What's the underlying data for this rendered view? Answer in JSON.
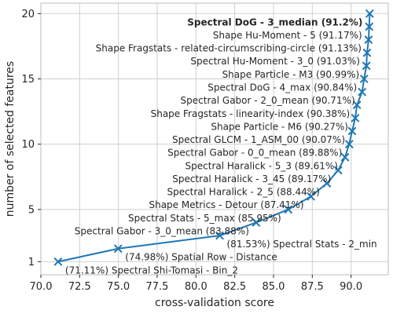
{
  "chart_data": {
    "type": "line",
    "title": "",
    "xlabel": "cross-validation score",
    "ylabel": "number of selected features",
    "xlim": [
      70.0,
      92.4
    ],
    "ylim": [
      0.0,
      20.8
    ],
    "xticks": [
      70.0,
      72.5,
      75.0,
      77.5,
      80.0,
      82.5,
      85.0,
      87.5,
      90.0
    ],
    "xtick_labels": [
      "70.0",
      "72.5",
      "75.0",
      "77.5",
      "80.0",
      "82.5",
      "85.0",
      "87.5",
      "90.0"
    ],
    "yticks": [
      1,
      5,
      10,
      15,
      20
    ],
    "ytick_labels": [
      "1",
      "5",
      "10",
      "15",
      "20"
    ],
    "grid": true,
    "marker": "x",
    "color": "#1f77b4",
    "series": [
      {
        "points": [
          {
            "x": 71.11,
            "y": 1,
            "label": "(71.11%) Spectral Shi-Tomasi - Bin_2",
            "label_side": "right",
            "bold": false
          },
          {
            "x": 74.98,
            "y": 2,
            "label": "(74.98%) Spatial Row - Distance",
            "label_side": "right",
            "bold": false
          },
          {
            "x": 81.53,
            "y": 3,
            "label": "(81.53%) Spectral Stats - 2_min",
            "label_side": "right",
            "bold": false
          },
          {
            "x": 83.88,
            "y": 4,
            "label": "Spectral Gabor - 3_0_mean (83.88%)",
            "label_side": "left",
            "bold": false
          },
          {
            "x": 85.95,
            "y": 5,
            "label": "Spectral Stats - 5_max (85.95%)",
            "label_side": "left",
            "bold": false
          },
          {
            "x": 87.41,
            "y": 6,
            "label": "Shape Metrics - Detour (87.41%)",
            "label_side": "left",
            "bold": false
          },
          {
            "x": 88.44,
            "y": 7,
            "label": "Spectral Haralick - 2_5 (88.44%)",
            "label_side": "left",
            "bold": false
          },
          {
            "x": 89.17,
            "y": 8,
            "label": "Spectral Haralick - 3_45 (89.17%)",
            "label_side": "left",
            "bold": false
          },
          {
            "x": 89.61,
            "y": 9,
            "label": "Spectral Haralick - 5_3 (89.61%)",
            "label_side": "left",
            "bold": false
          },
          {
            "x": 89.88,
            "y": 10,
            "label": "Spectral Gabor - 0_0_mean (89.88%)",
            "label_side": "left",
            "bold": false
          },
          {
            "x": 90.07,
            "y": 11,
            "label": "Spectral GLCM - 1_ASM_00 (90.07%)",
            "label_side": "left",
            "bold": false
          },
          {
            "x": 90.27,
            "y": 12,
            "label": "Shape Particle - M6 (90.27%)",
            "label_side": "left",
            "bold": false
          },
          {
            "x": 90.38,
            "y": 13,
            "label": "Shape Fragstats - linearity-index (90.38%)",
            "label_side": "left",
            "bold": false
          },
          {
            "x": 90.71,
            "y": 14,
            "label": "Spectral Gabor - 2_0_mean (90.71%)",
            "label_side": "left",
            "bold": false
          },
          {
            "x": 90.84,
            "y": 15,
            "label": "Spectral DoG - 4_max (90.84%)",
            "label_side": "left",
            "bold": false
          },
          {
            "x": 90.99,
            "y": 16,
            "label": "Shape Particle - M3 (90.99%)",
            "label_side": "left",
            "bold": false
          },
          {
            "x": 91.03,
            "y": 17,
            "label": "Spectral Hu-Moment - 3_0 (91.03%)",
            "label_side": "left",
            "bold": false
          },
          {
            "x": 91.13,
            "y": 18,
            "label": "Shape Fragstats - related-circumscribing-circle (91.13%)",
            "label_side": "left",
            "bold": false
          },
          {
            "x": 91.17,
            "y": 19,
            "label": "Shape Hu-Moment - 5 (91.17%)",
            "label_side": "left",
            "bold": false
          },
          {
            "x": 91.2,
            "y": 20,
            "label": "Spectral DoG - 3_median (91.2%)",
            "label_side": "left",
            "bold": true
          }
        ]
      }
    ]
  }
}
